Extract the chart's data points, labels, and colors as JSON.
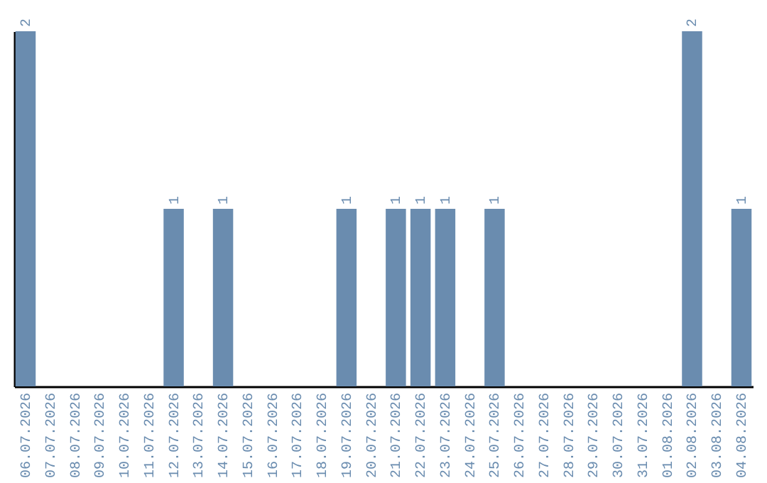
{
  "chart_data": {
    "type": "bar",
    "categories": [
      "06.07.2026",
      "07.07.2026",
      "08.07.2026",
      "09.07.2026",
      "10.07.2026",
      "11.07.2026",
      "12.07.2026",
      "13.07.2026",
      "14.07.2026",
      "15.07.2026",
      "16.07.2026",
      "17.07.2026",
      "18.07.2026",
      "19.07.2026",
      "20.07.2026",
      "21.07.2026",
      "22.07.2026",
      "23.07.2026",
      "24.07.2026",
      "25.07.2026",
      "26.07.2026",
      "27.07.2026",
      "28.07.2026",
      "29.07.2026",
      "30.07.2026",
      "31.07.2026",
      "01.08.2026",
      "02.08.2026",
      "03.08.2026",
      "04.08.2026"
    ],
    "values": [
      2,
      0,
      0,
      0,
      0,
      0,
      1,
      0,
      1,
      0,
      0,
      0,
      0,
      1,
      0,
      1,
      1,
      1,
      0,
      1,
      0,
      0,
      0,
      0,
      0,
      0,
      0,
      2,
      0,
      1
    ],
    "value_labels": [
      "2",
      null,
      null,
      null,
      null,
      null,
      "1",
      null,
      "1",
      null,
      null,
      null,
      null,
      "1",
      null,
      "1",
      "1",
      "1",
      null,
      "1",
      null,
      null,
      null,
      null,
      null,
      null,
      null,
      "2",
      null,
      "1"
    ],
    "color": "#6a8caf",
    "tick_labels": "x"
  }
}
